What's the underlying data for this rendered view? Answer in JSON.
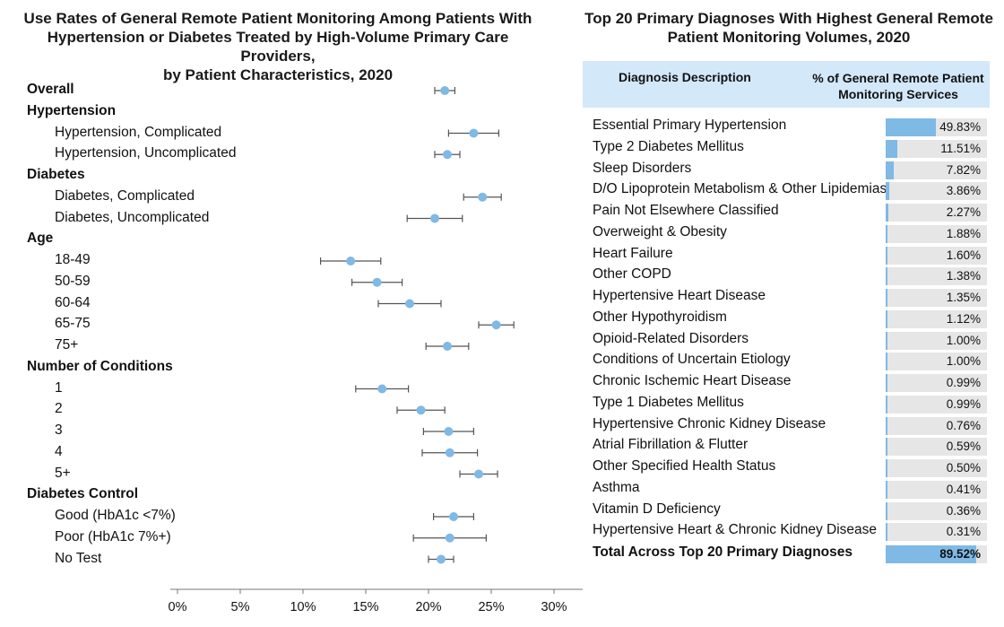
{
  "left_chart": {
    "title_lines": [
      "Use Rates of General Remote Patient Monitoring Among Patients With",
      "Hypertension or Diabetes Treated by High-Volume Primary Care Providers,",
      "by Patient Characteristics, 2020"
    ]
  },
  "right_table": {
    "title_lines": [
      "Top 20 Primary Diagnoses With Highest General Remote",
      "Patient Monitoring Volumes, 2020"
    ],
    "col_desc": "Diagnosis Description",
    "col_pct_lines": [
      "% of General Remote Patient",
      "Monitoring Services"
    ]
  },
  "colors": {
    "dot": "#7fb9e6",
    "bar": "#7fb9e6",
    "track": "#e6e6e6",
    "header_bg": "#d3e8f8",
    "whisker": "#555555"
  },
  "chart_data": [
    {
      "type": "scatter",
      "title": "Use Rates of General Remote Patient Monitoring Among Patients With Hypertension or Diabetes Treated by High-Volume Primary Care Providers, by Patient Characteristics, 2020",
      "xlim": [
        0,
        32
      ],
      "x_ticks": [
        "0%",
        "5%",
        "10%",
        "15%",
        "20%",
        "25%",
        "30%"
      ],
      "x_tick_values": [
        0,
        5,
        10,
        15,
        20,
        25,
        30
      ],
      "grid": false,
      "rows": [
        {
          "label": "Overall",
          "group": true,
          "value": 21.3,
          "low": 20.5,
          "high": 22.1
        },
        {
          "label": "Hypertension",
          "group": true
        },
        {
          "label": "Hypertension, Complicated",
          "value": 23.6,
          "low": 21.6,
          "high": 25.6
        },
        {
          "label": "Hypertension, Uncomplicated",
          "value": 21.5,
          "low": 20.5,
          "high": 22.5
        },
        {
          "label": "Diabetes",
          "group": true
        },
        {
          "label": "Diabetes, Complicated",
          "value": 24.3,
          "low": 22.8,
          "high": 25.8
        },
        {
          "label": "Diabetes, Uncomplicated",
          "value": 20.5,
          "low": 18.3,
          "high": 22.7
        },
        {
          "label": "Age",
          "group": true
        },
        {
          "label": "18-49",
          "value": 13.8,
          "low": 11.4,
          "high": 16.2
        },
        {
          "label": "50-59",
          "value": 15.9,
          "low": 13.9,
          "high": 17.9
        },
        {
          "label": "60-64",
          "value": 18.5,
          "low": 16.0,
          "high": 21.0
        },
        {
          "label": "65-75",
          "value": 25.4,
          "low": 24.0,
          "high": 26.8
        },
        {
          "label": "75+",
          "value": 21.5,
          "low": 19.8,
          "high": 23.2
        },
        {
          "label": "Number of Conditions",
          "group": true
        },
        {
          "label": "1",
          "value": 16.3,
          "low": 14.2,
          "high": 18.4
        },
        {
          "label": "2",
          "value": 19.4,
          "low": 17.5,
          "high": 21.3
        },
        {
          "label": "3",
          "value": 21.6,
          "low": 19.6,
          "high": 23.6
        },
        {
          "label": "4",
          "value": 21.7,
          "low": 19.5,
          "high": 23.9
        },
        {
          "label": "5+",
          "value": 24.0,
          "low": 22.5,
          "high": 25.5
        },
        {
          "label": "Diabetes Control",
          "group": true
        },
        {
          "label": "Good (HbA1c <7%)",
          "value": 22.0,
          "low": 20.4,
          "high": 23.6
        },
        {
          "label": "Poor (HbA1c 7%+)",
          "value": 21.7,
          "low": 18.8,
          "high": 24.6
        },
        {
          "label": "No Test",
          "value": 21.0,
          "low": 20.0,
          "high": 22.0
        }
      ]
    },
    {
      "type": "bar",
      "title": "Top 20 Primary Diagnoses With Highest General Remote Patient Monitoring Volumes, 2020",
      "xlim": [
        0,
        100
      ],
      "rows": [
        {
          "label": "Essential Primary Hypertension",
          "value": 49.83,
          "text": "49.83%"
        },
        {
          "label": "Type 2 Diabetes Mellitus",
          "value": 11.51,
          "text": "11.51%"
        },
        {
          "label": "Sleep Disorders",
          "value": 7.82,
          "text": "7.82%"
        },
        {
          "label": "D/O Lipoprotein Metabolism & Other Lipidemias",
          "value": 3.86,
          "text": "3.86%"
        },
        {
          "label": "Pain Not Elsewhere Classified",
          "value": 2.27,
          "text": "2.27%"
        },
        {
          "label": "Overweight & Obesity",
          "value": 1.88,
          "text": "1.88%"
        },
        {
          "label": "Heart Failure",
          "value": 1.6,
          "text": "1.60%"
        },
        {
          "label": "Other COPD",
          "value": 1.38,
          "text": "1.38%"
        },
        {
          "label": "Hypertensive Heart Disease",
          "value": 1.35,
          "text": "1.35%"
        },
        {
          "label": "Other Hypothyroidism",
          "value": 1.12,
          "text": "1.12%"
        },
        {
          "label": "Opioid-Related Disorders",
          "value": 1.0,
          "text": "1.00%"
        },
        {
          "label": "Conditions of Uncertain Etiology",
          "value": 1.0,
          "text": "1.00%"
        },
        {
          "label": "Chronic Ischemic Heart Disease",
          "value": 0.99,
          "text": "0.99%"
        },
        {
          "label": "Type 1 Diabetes Mellitus",
          "value": 0.99,
          "text": "0.99%"
        },
        {
          "label": "Hypertensive Chronic Kidney Disease",
          "value": 0.76,
          "text": "0.76%"
        },
        {
          "label": "Atrial Fibrillation & Flutter",
          "value": 0.59,
          "text": "0.59%"
        },
        {
          "label": "Other Specified Health Status",
          "value": 0.5,
          "text": "0.50%"
        },
        {
          "label": "Asthma",
          "value": 0.41,
          "text": "0.41%"
        },
        {
          "label": "Vitamin D Deficiency",
          "value": 0.36,
          "text": "0.36%"
        },
        {
          "label": "Hypertensive Heart & Chronic Kidney Disease",
          "value": 0.31,
          "text": "0.31%"
        }
      ],
      "total": {
        "label": "Total Across Top 20 Primary Diagnoses",
        "value": 89.52,
        "text": "89.52%"
      }
    }
  ]
}
